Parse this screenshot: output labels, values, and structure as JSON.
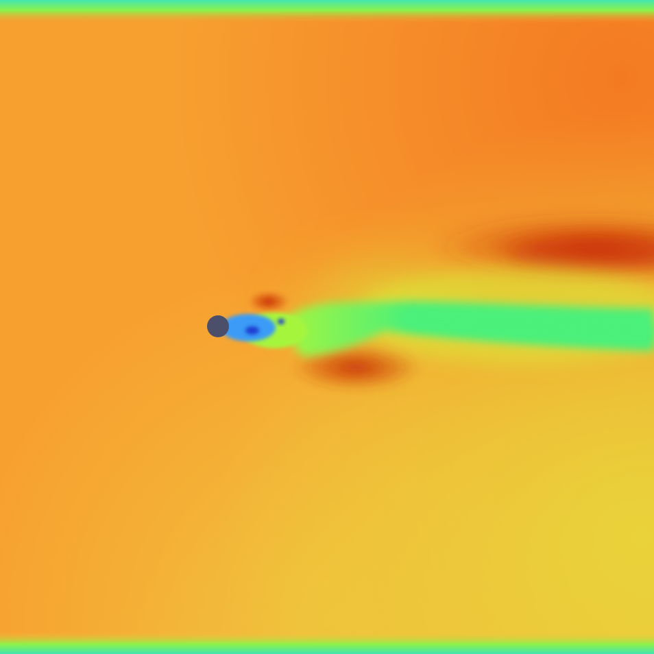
{
  "colors": {
    "base_orange": "#f7a030",
    "upper_right_orange": "#f47a22",
    "lower_right_yellow": "#e9d23a",
    "lower_middle_yellow": "#f1c13c",
    "deep_red": "#c92a08",
    "wake_green": "#4bf07a",
    "light_green": "#a6f53e",
    "yellow_green": "#d8ee3a",
    "blue": "#3a9bf7",
    "dark_blue": "#1f3ed0",
    "obstacle": "#4b4f6a",
    "wall_green": "#8df24a",
    "wall_cyan": "#43e6b0"
  }
}
